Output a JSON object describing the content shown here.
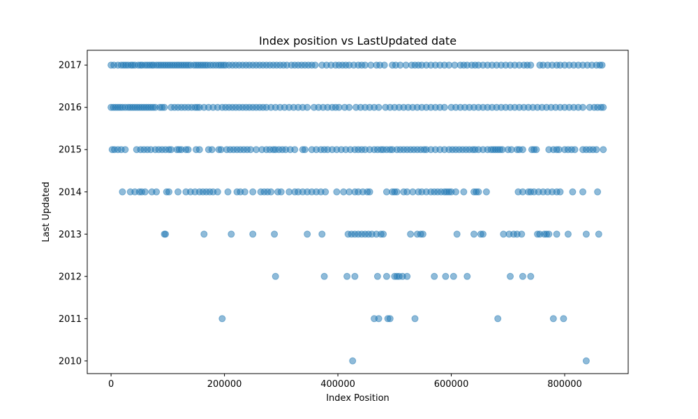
{
  "chart_data": {
    "type": "scatter",
    "title": "Index position vs LastUpdated date",
    "xlabel": "Index Position",
    "ylabel": "Last Updated",
    "xlim": [
      -42000,
      912000
    ],
    "ylim": [
      2009.7,
      2017.35
    ],
    "x_ticks": [
      0,
      200000,
      400000,
      600000,
      800000
    ],
    "x_tick_labels": [
      "0",
      "200000",
      "400000",
      "600000",
      "800000"
    ],
    "y_ticks": [
      2010,
      2011,
      2012,
      2013,
      2014,
      2015,
      2016,
      2017
    ],
    "y_tick_labels": [
      "2010",
      "2011",
      "2012",
      "2013",
      "2014",
      "2015",
      "2016",
      "2017"
    ],
    "grid": false,
    "legend": "none",
    "marker_color": "#1f77b4",
    "marker_alpha": 0.5,
    "series": [
      {
        "y": 2017,
        "x": [
          0,
          5000,
          12000,
          18000,
          22000,
          26000,
          30000,
          35000,
          38000,
          42000,
          48000,
          52000,
          55000,
          60000,
          64000,
          68000,
          72000,
          75000,
          80000,
          84000,
          88000,
          92000,
          96000,
          100000,
          104000,
          108000,
          112000,
          116000,
          120000,
          124000,
          128000,
          132000,
          136000,
          140000,
          146000,
          150000,
          154000,
          158000,
          162000,
          166000,
          170000,
          175000,
          180000,
          185000,
          190000,
          194000,
          198000,
          202000,
          208000,
          214000,
          220000,
          226000,
          232000,
          238000,
          244000,
          250000,
          256000,
          262000,
          268000,
          274000,
          280000,
          286000,
          292000,
          298000,
          304000,
          310000,
          318000,
          324000,
          330000,
          336000,
          342000,
          348000,
          354000,
          360000,
          372000,
          380000,
          388000,
          396000,
          402000,
          408000,
          414000,
          420000,
          428000,
          436000,
          442000,
          448000,
          458000,
          468000,
          474000,
          482000,
          496000,
          502000,
          510000,
          520000,
          530000,
          536000,
          542000,
          548000,
          556000,
          564000,
          572000,
          580000,
          588000,
          596000,
          606000,
          616000,
          622000,
          628000,
          636000,
          642000,
          648000,
          656000,
          664000,
          672000,
          680000,
          688000,
          696000,
          704000,
          712000,
          720000,
          728000,
          734000,
          740000,
          756000,
          762000,
          770000,
          778000,
          786000,
          792000,
          800000,
          808000,
          816000,
          824000,
          832000,
          840000,
          848000,
          856000,
          862000,
          866000
        ]
      },
      {
        "y": 2016,
        "x": [
          0,
          4000,
          8000,
          12000,
          16000,
          20000,
          25000,
          30000,
          34000,
          38000,
          42000,
          46000,
          50000,
          54000,
          58000,
          62000,
          66000,
          70000,
          74000,
          78000,
          86000,
          90000,
          94000,
          106000,
          112000,
          118000,
          124000,
          130000,
          136000,
          142000,
          148000,
          152000,
          156000,
          164000,
          172000,
          180000,
          188000,
          196000,
          202000,
          208000,
          214000,
          220000,
          226000,
          232000,
          238000,
          244000,
          250000,
          256000,
          262000,
          268000,
          274000,
          282000,
          290000,
          298000,
          306000,
          314000,
          322000,
          330000,
          338000,
          346000,
          358000,
          366000,
          374000,
          382000,
          390000,
          396000,
          402000,
          412000,
          420000,
          432000,
          440000,
          448000,
          456000,
          464000,
          472000,
          484000,
          492000,
          500000,
          508000,
          516000,
          524000,
          532000,
          540000,
          548000,
          556000,
          564000,
          572000,
          580000,
          588000,
          600000,
          608000,
          616000,
          624000,
          632000,
          640000,
          648000,
          656000,
          664000,
          672000,
          680000,
          688000,
          696000,
          704000,
          712000,
          720000,
          728000,
          736000,
          744000,
          752000,
          760000,
          768000,
          776000,
          784000,
          792000,
          800000,
          808000,
          816000,
          824000,
          832000,
          844000,
          852000,
          858000,
          864000,
          868000
        ]
      },
      {
        "y": 2015,
        "x": [
          2000,
          6000,
          12000,
          18000,
          25000,
          45000,
          52000,
          58000,
          64000,
          70000,
          78000,
          84000,
          90000,
          96000,
          102000,
          106000,
          116000,
          120000,
          124000,
          132000,
          136000,
          150000,
          156000,
          172000,
          178000,
          190000,
          194000,
          204000,
          210000,
          216000,
          222000,
          228000,
          234000,
          240000,
          246000,
          256000,
          266000,
          274000,
          280000,
          286000,
          290000,
          296000,
          302000,
          308000,
          316000,
          324000,
          338000,
          342000,
          354000,
          362000,
          370000,
          376000,
          382000,
          390000,
          398000,
          406000,
          414000,
          422000,
          430000,
          436000,
          442000,
          448000,
          456000,
          464000,
          470000,
          476000,
          480000,
          486000,
          492000,
          496000,
          504000,
          510000,
          516000,
          522000,
          528000,
          534000,
          540000,
          546000,
          552000,
          556000,
          564000,
          572000,
          580000,
          588000,
          596000,
          602000,
          608000,
          614000,
          620000,
          626000,
          632000,
          638000,
          642000,
          648000,
          656000,
          664000,
          670000,
          674000,
          678000,
          682000,
          686000,
          690000,
          700000,
          706000,
          716000,
          720000,
          726000,
          742000,
          746000,
          750000,
          772000,
          780000,
          786000,
          790000,
          800000,
          806000,
          812000,
          818000,
          832000,
          838000,
          844000,
          850000,
          856000,
          868000
        ]
      },
      {
        "y": 2014,
        "x": [
          20000,
          34000,
          42000,
          50000,
          54000,
          60000,
          72000,
          80000,
          98000,
          102000,
          118000,
          132000,
          140000,
          148000,
          156000,
          162000,
          168000,
          174000,
          180000,
          188000,
          206000,
          222000,
          228000,
          236000,
          250000,
          264000,
          270000,
          276000,
          282000,
          294000,
          300000,
          314000,
          324000,
          330000,
          338000,
          346000,
          354000,
          362000,
          370000,
          378000,
          398000,
          410000,
          420000,
          430000,
          436000,
          444000,
          452000,
          456000,
          486000,
          496000,
          500000,
          504000,
          516000,
          522000,
          532000,
          542000,
          548000,
          556000,
          564000,
          570000,
          576000,
          582000,
          588000,
          592000,
          596000,
          600000,
          608000,
          622000,
          640000,
          644000,
          648000,
          662000,
          718000,
          726000,
          736000,
          740000,
          746000,
          754000,
          762000,
          770000,
          778000,
          786000,
          792000,
          814000,
          832000,
          858000
        ]
      },
      {
        "y": 2013,
        "x": [
          94000,
          96000,
          164000,
          212000,
          250000,
          288000,
          346000,
          372000,
          418000,
          424000,
          430000,
          436000,
          442000,
          448000,
          454000,
          460000,
          468000,
          476000,
          480000,
          528000,
          540000,
          546000,
          550000,
          610000,
          640000,
          652000,
          656000,
          692000,
          702000,
          710000,
          716000,
          724000,
          752000,
          756000,
          764000,
          768000,
          772000,
          786000,
          806000,
          838000,
          860000
        ]
      },
      {
        "y": 2012,
        "x": [
          290000,
          376000,
          416000,
          430000,
          470000,
          486000,
          500000,
          504000,
          508000,
          514000,
          522000,
          570000,
          590000,
          604000,
          628000,
          704000,
          726000,
          740000
        ]
      },
      {
        "y": 2011,
        "x": [
          196000,
          464000,
          472000,
          488000,
          492000,
          536000,
          682000,
          780000,
          798000
        ]
      },
      {
        "y": 2010,
        "x": [
          426000,
          838000
        ]
      }
    ]
  }
}
